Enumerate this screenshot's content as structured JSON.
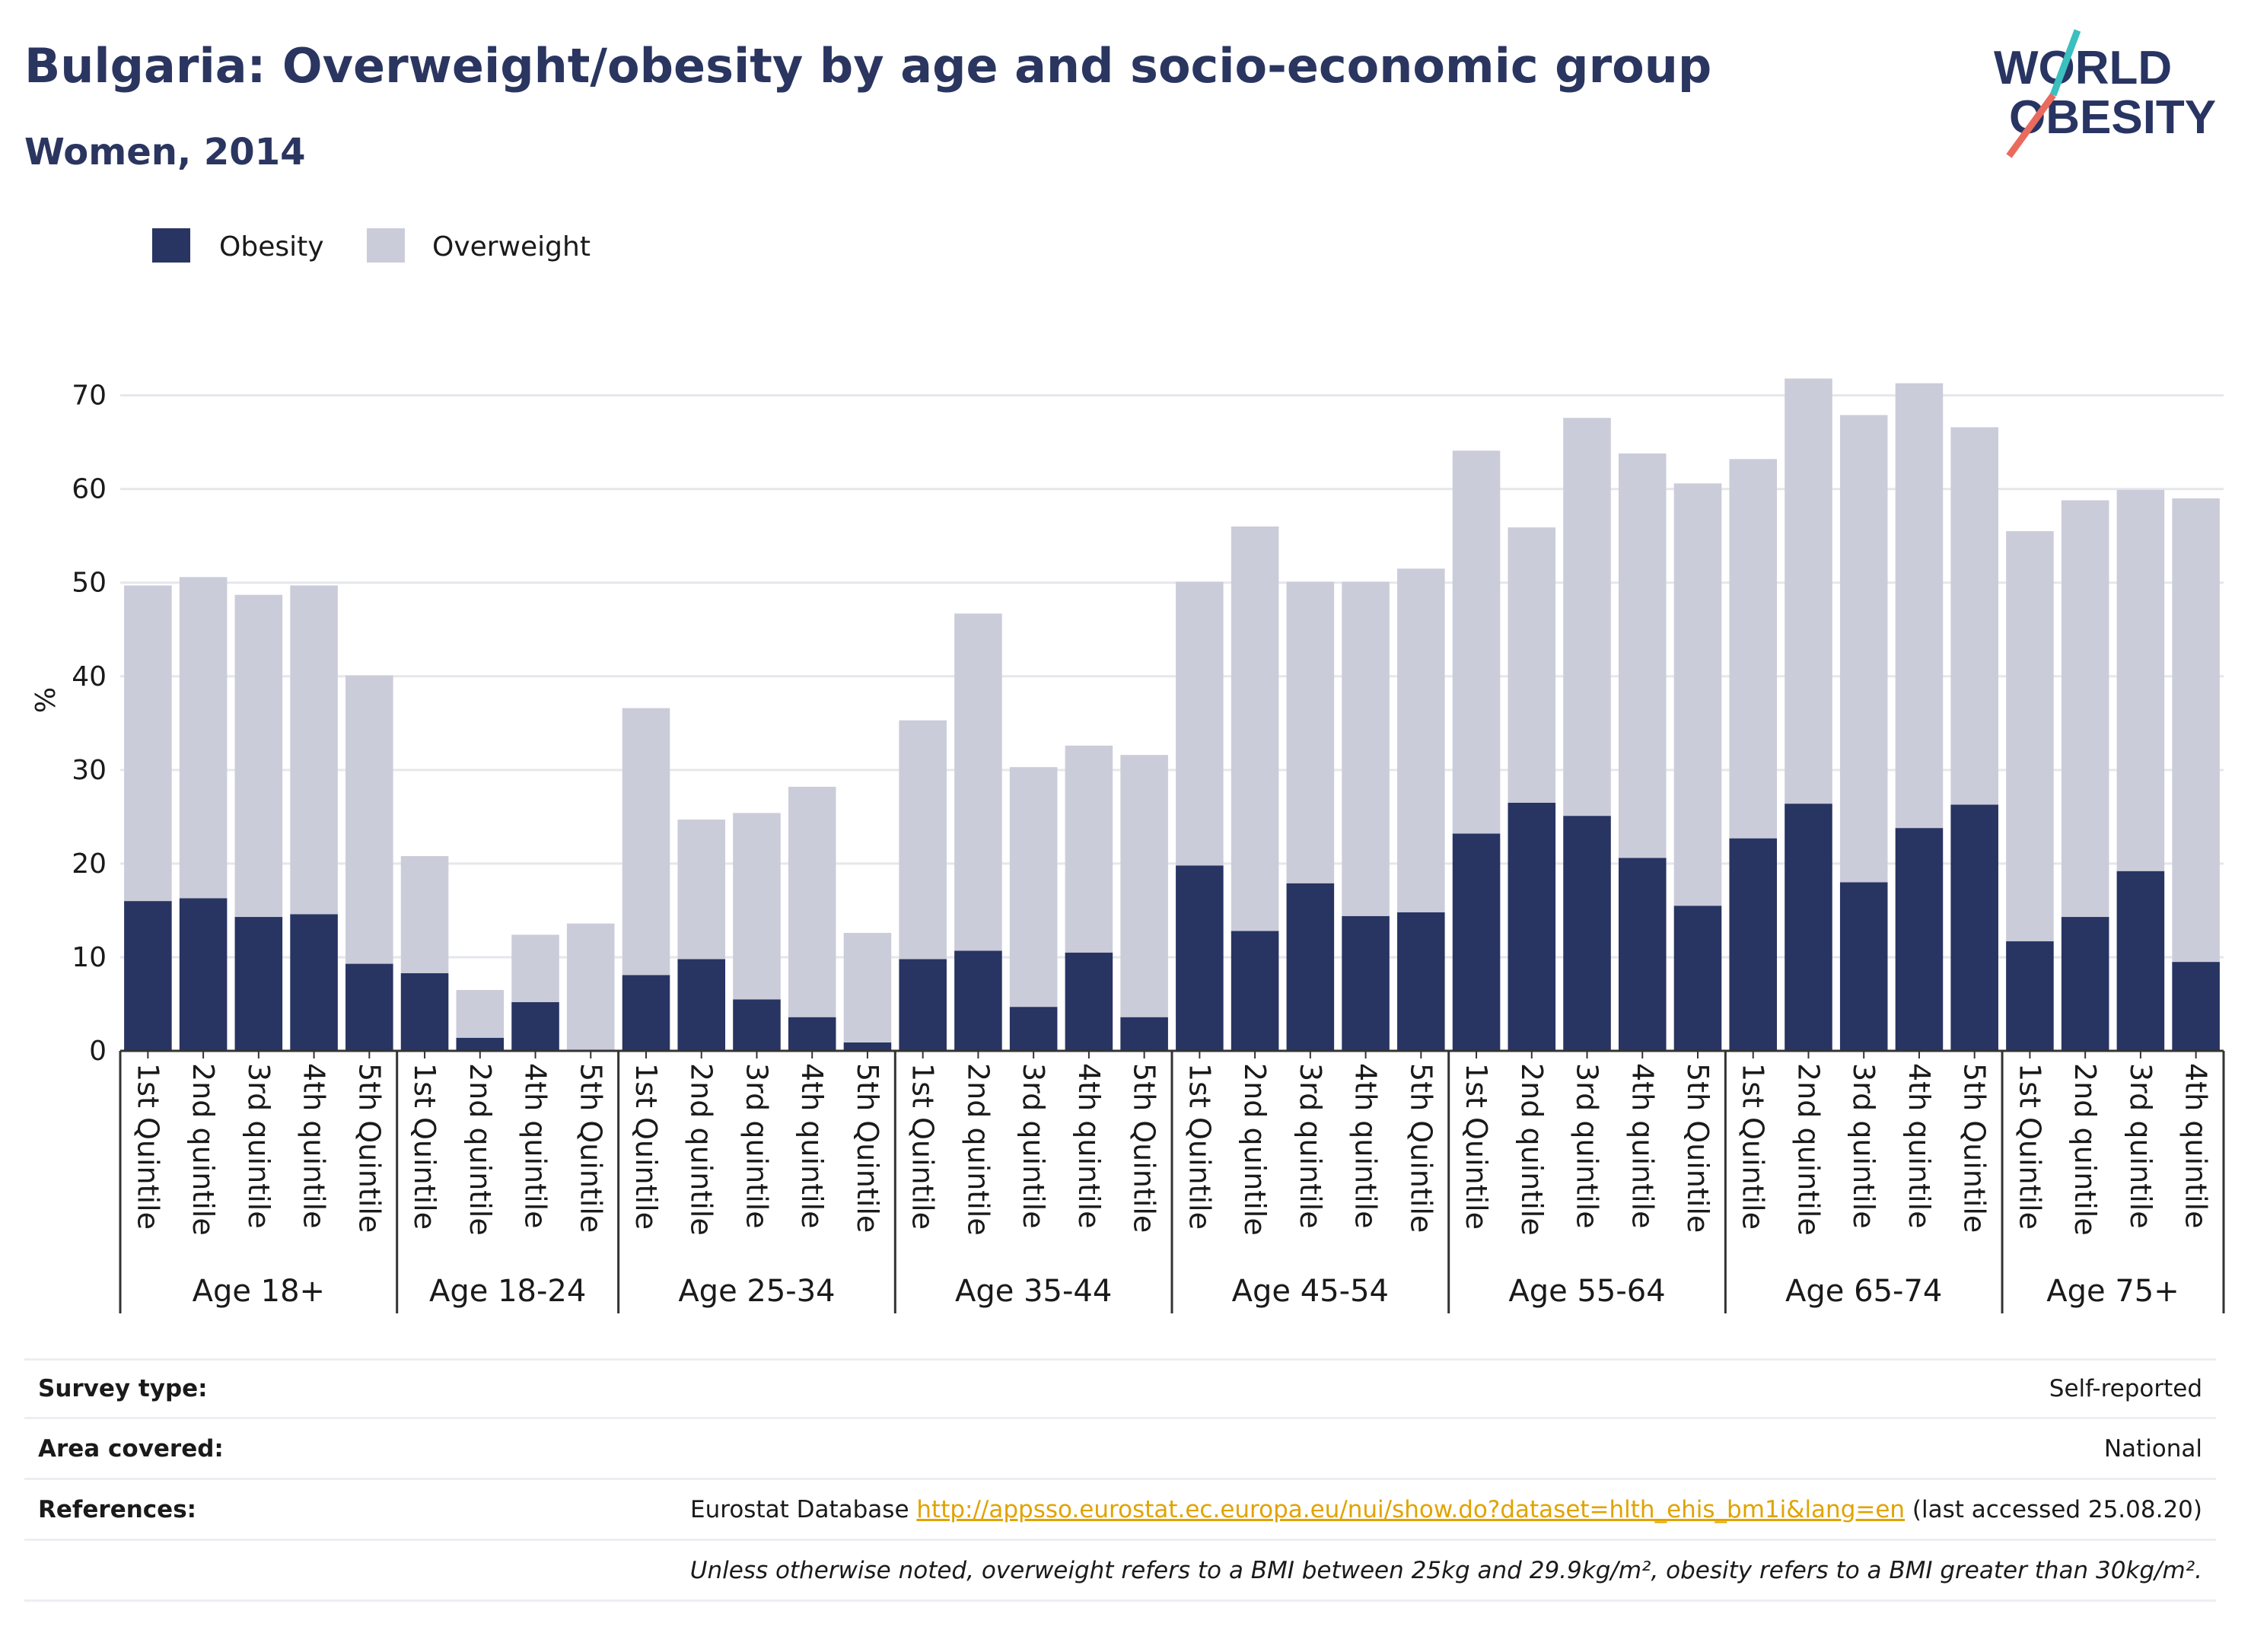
{
  "header": {
    "title": "Bulgaria: Overweight/obesity by age and socio-economic group",
    "subtitle": "Women, 2014",
    "logo_line1": "WORLD",
    "logo_line2": "OBESITY"
  },
  "colors": {
    "obesity": "#283462",
    "overweight": "#cbccd9",
    "grid": "#e6e7ec",
    "axis": "#333333",
    "accent_teal": "#3bbfbf",
    "accent_coral": "#e96b5d"
  },
  "info": {
    "survey_type_label": "Survey type:",
    "survey_type_value": "Self-reported",
    "area_label": "Area covered:",
    "area_value": "National",
    "references_label": "References:",
    "references_prefix": "Eurostat Database ",
    "references_link": "http://appsso.eurostat.ec.europa.eu/nui/show.do?dataset=hlth_ehis_bm1i&lang=en",
    "references_suffix": " (last accessed 25.08.20)",
    "note": "Unless otherwise noted, overweight refers to a BMI between 25kg and 29.9kg/m², obesity refers to a BMI greater than 30kg/m²."
  },
  "chart_data": {
    "type": "bar",
    "stacked": true,
    "ylabel": "%",
    "ylim": [
      0,
      72
    ],
    "yticks": [
      0,
      10,
      20,
      30,
      40,
      50,
      60,
      70
    ],
    "grid": true,
    "legend_position": "top-left",
    "groups": [
      {
        "label": "Age 18+",
        "categories": [
          "1st Quintile",
          "2nd quintile",
          "3rd quintile",
          "4th quintile",
          "5th Quintile"
        ],
        "obesity": [
          16.0,
          16.3,
          14.3,
          14.6,
          9.3
        ],
        "overweight": [
          33.7,
          34.3,
          34.4,
          35.1,
          30.8
        ]
      },
      {
        "label": "Age 18-24",
        "categories": [
          "1st Quintile",
          "2nd quintile",
          "4th quintile",
          "5th Quintile"
        ],
        "obesity": [
          8.3,
          1.4,
          5.2,
          0.0
        ],
        "overweight": [
          12.5,
          5.1,
          7.2,
          13.6
        ]
      },
      {
        "label": "Age 25-34",
        "categories": [
          "1st Quintile",
          "2nd quintile",
          "3rd quintile",
          "4th quintile",
          "5th Quintile"
        ],
        "obesity": [
          8.1,
          9.8,
          5.5,
          3.6,
          0.9
        ],
        "overweight": [
          28.5,
          14.9,
          19.9,
          24.6,
          11.7
        ]
      },
      {
        "label": "Age 35-44",
        "categories": [
          "1st Quintile",
          "2nd quintile",
          "3rd quintile",
          "4th quintile",
          "5th Quintile"
        ],
        "obesity": [
          9.8,
          10.7,
          4.7,
          10.5,
          3.6
        ],
        "overweight": [
          25.5,
          36.0,
          25.6,
          22.1,
          28.0
        ]
      },
      {
        "label": "Age 45-54",
        "categories": [
          "1st Quintile",
          "2nd quintile",
          "3rd quintile",
          "4th quintile",
          "5th Quintile"
        ],
        "obesity": [
          19.8,
          12.8,
          17.9,
          14.4,
          14.8
        ],
        "overweight": [
          30.3,
          43.2,
          32.2,
          35.7,
          36.7
        ]
      },
      {
        "label": "Age 55-64",
        "categories": [
          "1st Quintile",
          "2nd quintile",
          "3rd quintile",
          "4th quintile",
          "5th Quintile"
        ],
        "obesity": [
          23.2,
          26.5,
          25.1,
          20.6,
          15.5
        ],
        "overweight": [
          40.9,
          29.4,
          42.5,
          43.2,
          45.1
        ]
      },
      {
        "label": "Age 65-74",
        "categories": [
          "1st Quintile",
          "2nd quintile",
          "3rd quintile",
          "4th quintile",
          "5th Quintile"
        ],
        "obesity": [
          22.7,
          26.4,
          18.0,
          23.8,
          26.3
        ],
        "overweight": [
          40.5,
          45.4,
          49.9,
          47.5,
          40.3
        ]
      },
      {
        "label": "Age 75+",
        "categories": [
          "1st Quintile",
          "2nd quintile",
          "3rd quintile",
          "4th quintile"
        ],
        "obesity": [
          11.7,
          14.3,
          19.2,
          9.5
        ],
        "overweight": [
          43.8,
          44.5,
          40.7,
          49.5
        ]
      }
    ],
    "series": [
      {
        "name": "Obesity"
      },
      {
        "name": "Overweight"
      }
    ]
  }
}
